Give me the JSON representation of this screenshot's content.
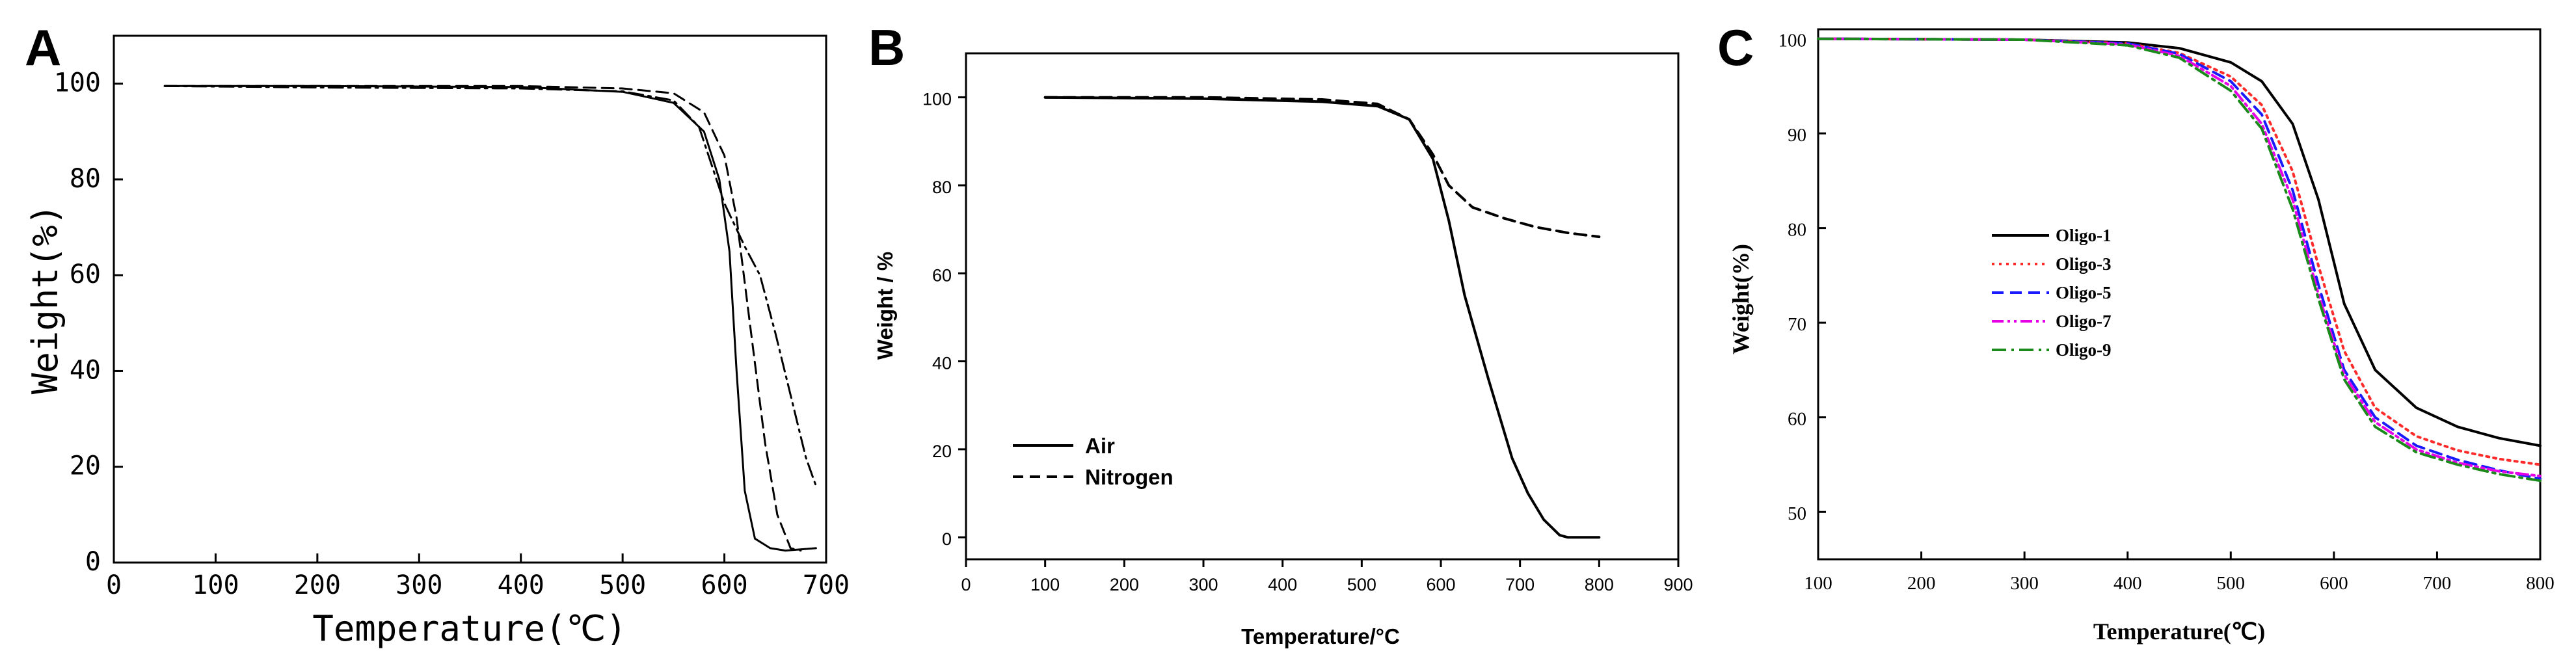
{
  "chart_data": [
    {
      "id": "A",
      "type": "line",
      "panel_label": "A",
      "xlabel": "Temperature(℃)",
      "ylabel": "Weight(%)",
      "xlim": [
        0,
        700
      ],
      "ylim": [
        0,
        110
      ],
      "xticks": [
        0,
        100,
        200,
        300,
        400,
        500,
        600,
        700
      ],
      "yticks": [
        0,
        20,
        40,
        60,
        80,
        100
      ],
      "series": [
        {
          "name": "solid",
          "style": "solid",
          "x": [
            50,
            200,
            400,
            500,
            550,
            580,
            595,
            605,
            612,
            620,
            630,
            645,
            660,
            690
          ],
          "y": [
            99.5,
            99.5,
            99.3,
            98.3,
            96,
            90,
            80,
            65,
            40,
            15,
            5,
            3,
            2.5,
            3
          ]
        },
        {
          "name": "dashed",
          "style": "dashed",
          "x": [
            50,
            200,
            400,
            500,
            550,
            580,
            600,
            612,
            625,
            640,
            652,
            665,
            675
          ],
          "y": [
            99.5,
            99.5,
            99.5,
            99,
            98,
            94,
            85,
            72,
            50,
            25,
            10,
            3,
            2.5
          ]
        },
        {
          "name": "dash-dot",
          "style": "dashdot",
          "x": [
            50,
            200,
            400,
            500,
            550,
            575,
            600,
            620,
            635,
            650,
            665,
            680,
            690
          ],
          "y": [
            99.5,
            99.2,
            99.0,
            98.4,
            96.5,
            91,
            75,
            66,
            60,
            48,
            35,
            22,
            16
          ]
        }
      ]
    },
    {
      "id": "B",
      "type": "line",
      "panel_label": "B",
      "xlabel": "Temperature/°C",
      "ylabel": "Weight / %",
      "xlim": [
        0,
        900
      ],
      "ylim": [
        -5,
        110
      ],
      "xticks": [
        0,
        100,
        200,
        300,
        400,
        500,
        600,
        700,
        800,
        900
      ],
      "yticks": [
        0,
        20,
        40,
        60,
        80,
        100
      ],
      "legend": [
        "Air",
        "Nitrogen"
      ],
      "series": [
        {
          "name": "Air",
          "style": "solid",
          "x": [
            100,
            300,
            450,
            520,
            560,
            590,
            610,
            630,
            660,
            690,
            710,
            730,
            750,
            760,
            800
          ],
          "y": [
            100,
            99.7,
            99,
            98,
            95,
            86,
            72,
            55,
            36,
            18,
            10,
            4,
            0.5,
            0,
            0
          ]
        },
        {
          "name": "Nitrogen",
          "style": "dashed",
          "x": [
            100,
            300,
            450,
            520,
            560,
            590,
            610,
            640,
            680,
            720,
            760,
            800
          ],
          "y": [
            100,
            100,
            99.5,
            98.5,
            95,
            87,
            80,
            75,
            72.5,
            70.5,
            69.2,
            68.3
          ]
        }
      ]
    },
    {
      "id": "C",
      "type": "line",
      "panel_label": "C",
      "xlabel": "Temperature(℃)",
      "ylabel": "Weight(%)",
      "xlim": [
        100,
        800
      ],
      "ylim": [
        45,
        101
      ],
      "xticks": [
        100,
        200,
        300,
        400,
        500,
        600,
        700,
        800
      ],
      "yticks": [
        50,
        60,
        70,
        80,
        90,
        100
      ],
      "legend": [
        "Oligo-1",
        "Oligo-3",
        "Oligo-5",
        "Oligo-7",
        "Oligo-9"
      ],
      "colors": {
        "Oligo-1": "#000000",
        "Oligo-3": "#ff2a2a",
        "Oligo-5": "#1a1aff",
        "Oligo-7": "#e600e6",
        "Oligo-9": "#1a8a1a"
      },
      "series": [
        {
          "name": "Oligo-1",
          "style": "solid",
          "x": [
            100,
            300,
            400,
            450,
            500,
            530,
            560,
            585,
            610,
            640,
            680,
            720,
            760,
            800
          ],
          "y": [
            100,
            99.9,
            99.6,
            99.0,
            97.5,
            95.5,
            91,
            83,
            72,
            65,
            61,
            59,
            57.8,
            57
          ]
        },
        {
          "name": "Oligo-3",
          "style": "dotted",
          "x": [
            100,
            300,
            400,
            450,
            500,
            530,
            560,
            585,
            610,
            640,
            680,
            720,
            760,
            800
          ],
          "y": [
            100,
            99.9,
            99.5,
            98.5,
            96,
            93,
            86,
            76,
            67,
            61,
            58,
            56.5,
            55.6,
            55
          ]
        },
        {
          "name": "Oligo-5",
          "style": "dashed",
          "x": [
            100,
            300,
            400,
            450,
            500,
            530,
            560,
            585,
            610,
            640,
            680,
            720,
            760,
            800
          ],
          "y": [
            100,
            99.9,
            99.5,
            98.4,
            95.5,
            92,
            84,
            74,
            65,
            60,
            57,
            55.5,
            54.4,
            53.5
          ]
        },
        {
          "name": "Oligo-7",
          "style": "dashdotdot",
          "x": [
            100,
            300,
            400,
            450,
            500,
            530,
            560,
            585,
            610,
            640,
            680,
            720,
            760,
            800
          ],
          "y": [
            100,
            99.9,
            99.4,
            98.2,
            95,
            91,
            83,
            73,
            64.5,
            59.5,
            56.6,
            55.2,
            54.3,
            53.8
          ]
        },
        {
          "name": "Oligo-9",
          "style": "dashdot",
          "x": [
            100,
            300,
            400,
            450,
            500,
            530,
            560,
            585,
            610,
            640,
            680,
            720,
            760,
            800
          ],
          "y": [
            100,
            99.9,
            99.3,
            98,
            94.5,
            90.5,
            82,
            72.5,
            64,
            59,
            56.3,
            55,
            54,
            53.3
          ]
        }
      ]
    }
  ]
}
